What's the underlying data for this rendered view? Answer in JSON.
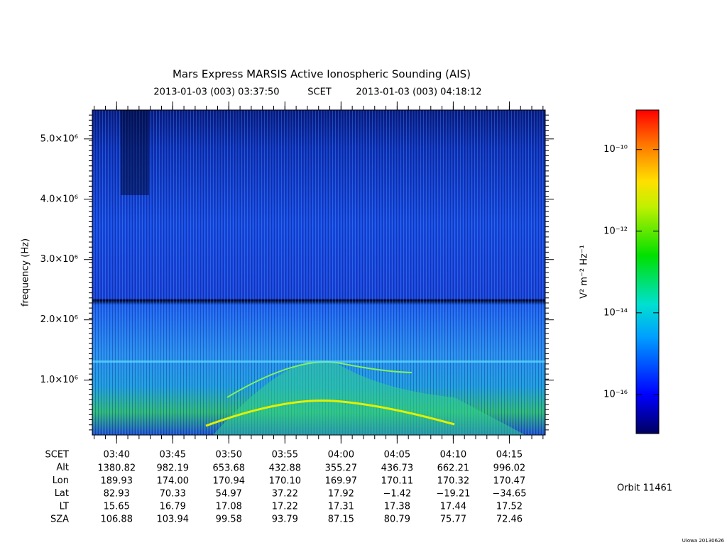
{
  "chart_data": {
    "type": "spectrogram",
    "title": "Mars Express MARSIS Active Ionospheric Sounding (AIS)",
    "start_time": "2013-01-03 (003) 03:37:50",
    "time_system": "SCET",
    "end_time": "2013-01-03 (003) 04:18:12",
    "y_label": "frequency (Hz)",
    "xlim": [
      "03:37:50",
      "04:18:12"
    ],
    "xticks": [
      "03:40",
      "03:45",
      "03:50",
      "03:55",
      "04:00",
      "04:05",
      "04:10",
      "04:15"
    ],
    "ylim": [
      90000,
      5480000
    ],
    "yticks": [
      {
        "value": 1000000,
        "label": "1.0×10⁶"
      },
      {
        "value": 2000000,
        "label": "2.0×10⁶"
      },
      {
        "value": 3000000,
        "label": "3.0×10⁶"
      },
      {
        "value": 4000000,
        "label": "4.0×10⁶"
      },
      {
        "value": 5000000,
        "label": "5.0×10⁶"
      }
    ],
    "ephemeris": {
      "row_labels": [
        "SCET",
        "Alt",
        "Lon",
        "Lat",
        "LT",
        "SZA"
      ],
      "rows": [
        [
          "1380.82",
          "982.19",
          "653.68",
          "432.88",
          "355.27",
          "436.73",
          "662.21",
          "996.02"
        ],
        [
          "189.93",
          "174.00",
          "170.94",
          "170.10",
          "169.97",
          "170.11",
          "170.32",
          "170.47"
        ],
        [
          "82.93",
          "70.33",
          "54.97",
          "37.22",
          "17.92",
          "−1.42",
          "−19.21",
          "−34.65"
        ],
        [
          "15.65",
          "16.79",
          "17.08",
          "17.22",
          "17.31",
          "17.38",
          "17.44",
          "17.52"
        ],
        [
          "106.88",
          "103.94",
          "99.58",
          "93.79",
          "87.15",
          "80.79",
          "75.77",
          "72.46"
        ]
      ]
    },
    "colorbar": {
      "label": "V² m⁻² Hz⁻¹",
      "log_scale": true,
      "zlim": [
        1.1e-17,
        9.3e-10
      ],
      "zticks": [
        {
          "value": 1e-10,
          "label": "10⁻¹⁰"
        },
        {
          "value": 1e-12,
          "label": "10⁻¹²"
        },
        {
          "value": 1e-14,
          "label": "10⁻¹⁴"
        },
        {
          "value": 1e-16,
          "label": "10⁻¹⁶"
        }
      ]
    },
    "orbit": "Orbit 11461",
    "footer": "Uiowa 20130626"
  }
}
